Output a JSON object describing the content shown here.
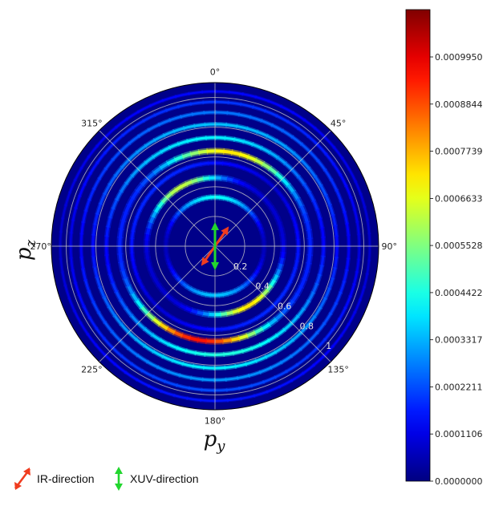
{
  "chart_data": {
    "type": "heatmap",
    "projection": "polar",
    "axis_labels": {
      "vertical": "p",
      "vertical_sub": "z",
      "horizontal": "p",
      "horizontal_sub": "y"
    },
    "angular_ticks": [
      {
        "deg": 0,
        "label": "0°"
      },
      {
        "deg": 45,
        "label": "45°"
      },
      {
        "deg": 90,
        "label": "90°"
      },
      {
        "deg": 135,
        "label": "135°"
      },
      {
        "deg": 180,
        "label": "180°"
      },
      {
        "deg": 225,
        "label": "225°"
      },
      {
        "deg": 270,
        "label": "270°"
      },
      {
        "deg": 315,
        "label": "315°"
      }
    ],
    "radial_ticks": [
      {
        "value": 0.2,
        "label": "0.2"
      },
      {
        "value": 0.4,
        "label": "0.4"
      },
      {
        "value": 0.6,
        "label": "0.6"
      },
      {
        "value": 0.8,
        "label": "0.8"
      },
      {
        "value": 1.0,
        "label": "1"
      }
    ],
    "rlim": [
      0,
      1.1
    ],
    "grid": true,
    "colormap": "jet",
    "colorbar": {
      "min": 0.0,
      "max": 0.001106,
      "ticks": [
        "0.0000000",
        "0.0001106",
        "0.0002211",
        "0.0003317",
        "0.0004422",
        "0.0005528",
        "0.0006633",
        "0.0007739",
        "0.0008844",
        "0.0009950"
      ]
    },
    "background_value": 1e-05,
    "rings": [
      {
        "r": 0.33,
        "width": 0.016,
        "peak": 0.00042,
        "lobe_angle": 0,
        "lobe_sharpness": 2.0,
        "floor": 0.15,
        "lobe_ratio": 0.8
      },
      {
        "r": 0.46,
        "width": 0.018,
        "peak": 0.00072,
        "lobe_angle": 150,
        "lobe_sharpness": 5.0,
        "floor": 0.12,
        "lobe_ratio": 0.85
      },
      {
        "r": 0.56,
        "width": 0.014,
        "peak": 0.00018,
        "lobe_angle": 135,
        "lobe_sharpness": 1.0,
        "floor": 0.45,
        "lobe_ratio": 1.0
      },
      {
        "r": 0.64,
        "width": 0.018,
        "peak": 0.00095,
        "lobe_angle": 190,
        "lobe_sharpness": 4.0,
        "floor": 0.18,
        "lobe_ratio": 0.7
      },
      {
        "r": 0.73,
        "width": 0.014,
        "peak": 0.00045,
        "lobe_angle": 175,
        "lobe_sharpness": 1.5,
        "floor": 0.3,
        "lobe_ratio": 0.85
      },
      {
        "r": 0.82,
        "width": 0.013,
        "peak": 0.0004,
        "lobe_angle": 180,
        "lobe_sharpness": 1.2,
        "floor": 0.35,
        "lobe_ratio": 0.8
      },
      {
        "r": 0.9,
        "width": 0.012,
        "peak": 0.0003,
        "lobe_angle": 180,
        "lobe_sharpness": 1.0,
        "floor": 0.4,
        "lobe_ratio": 0.8
      },
      {
        "r": 0.97,
        "width": 0.011,
        "peak": 0.00022,
        "lobe_angle": 180,
        "lobe_sharpness": 1.0,
        "floor": 0.45,
        "lobe_ratio": 0.8
      },
      {
        "r": 1.04,
        "width": 0.01,
        "peak": 0.00016,
        "lobe_angle": 180,
        "lobe_sharpness": 1.0,
        "floor": 0.5,
        "lobe_ratio": 0.8
      }
    ],
    "arrows": [
      {
        "name": "IR-direction",
        "angle_deg": 35,
        "color": "#f03c1f"
      },
      {
        "name": "XUV-direction",
        "angle_deg": 0,
        "color": "#22d62e"
      }
    ]
  },
  "legend": {
    "ir_label": "IR-direction",
    "xuv_label": "XUV-direction",
    "ir_color": "#f03c1f",
    "xuv_color": "#22d62e"
  }
}
